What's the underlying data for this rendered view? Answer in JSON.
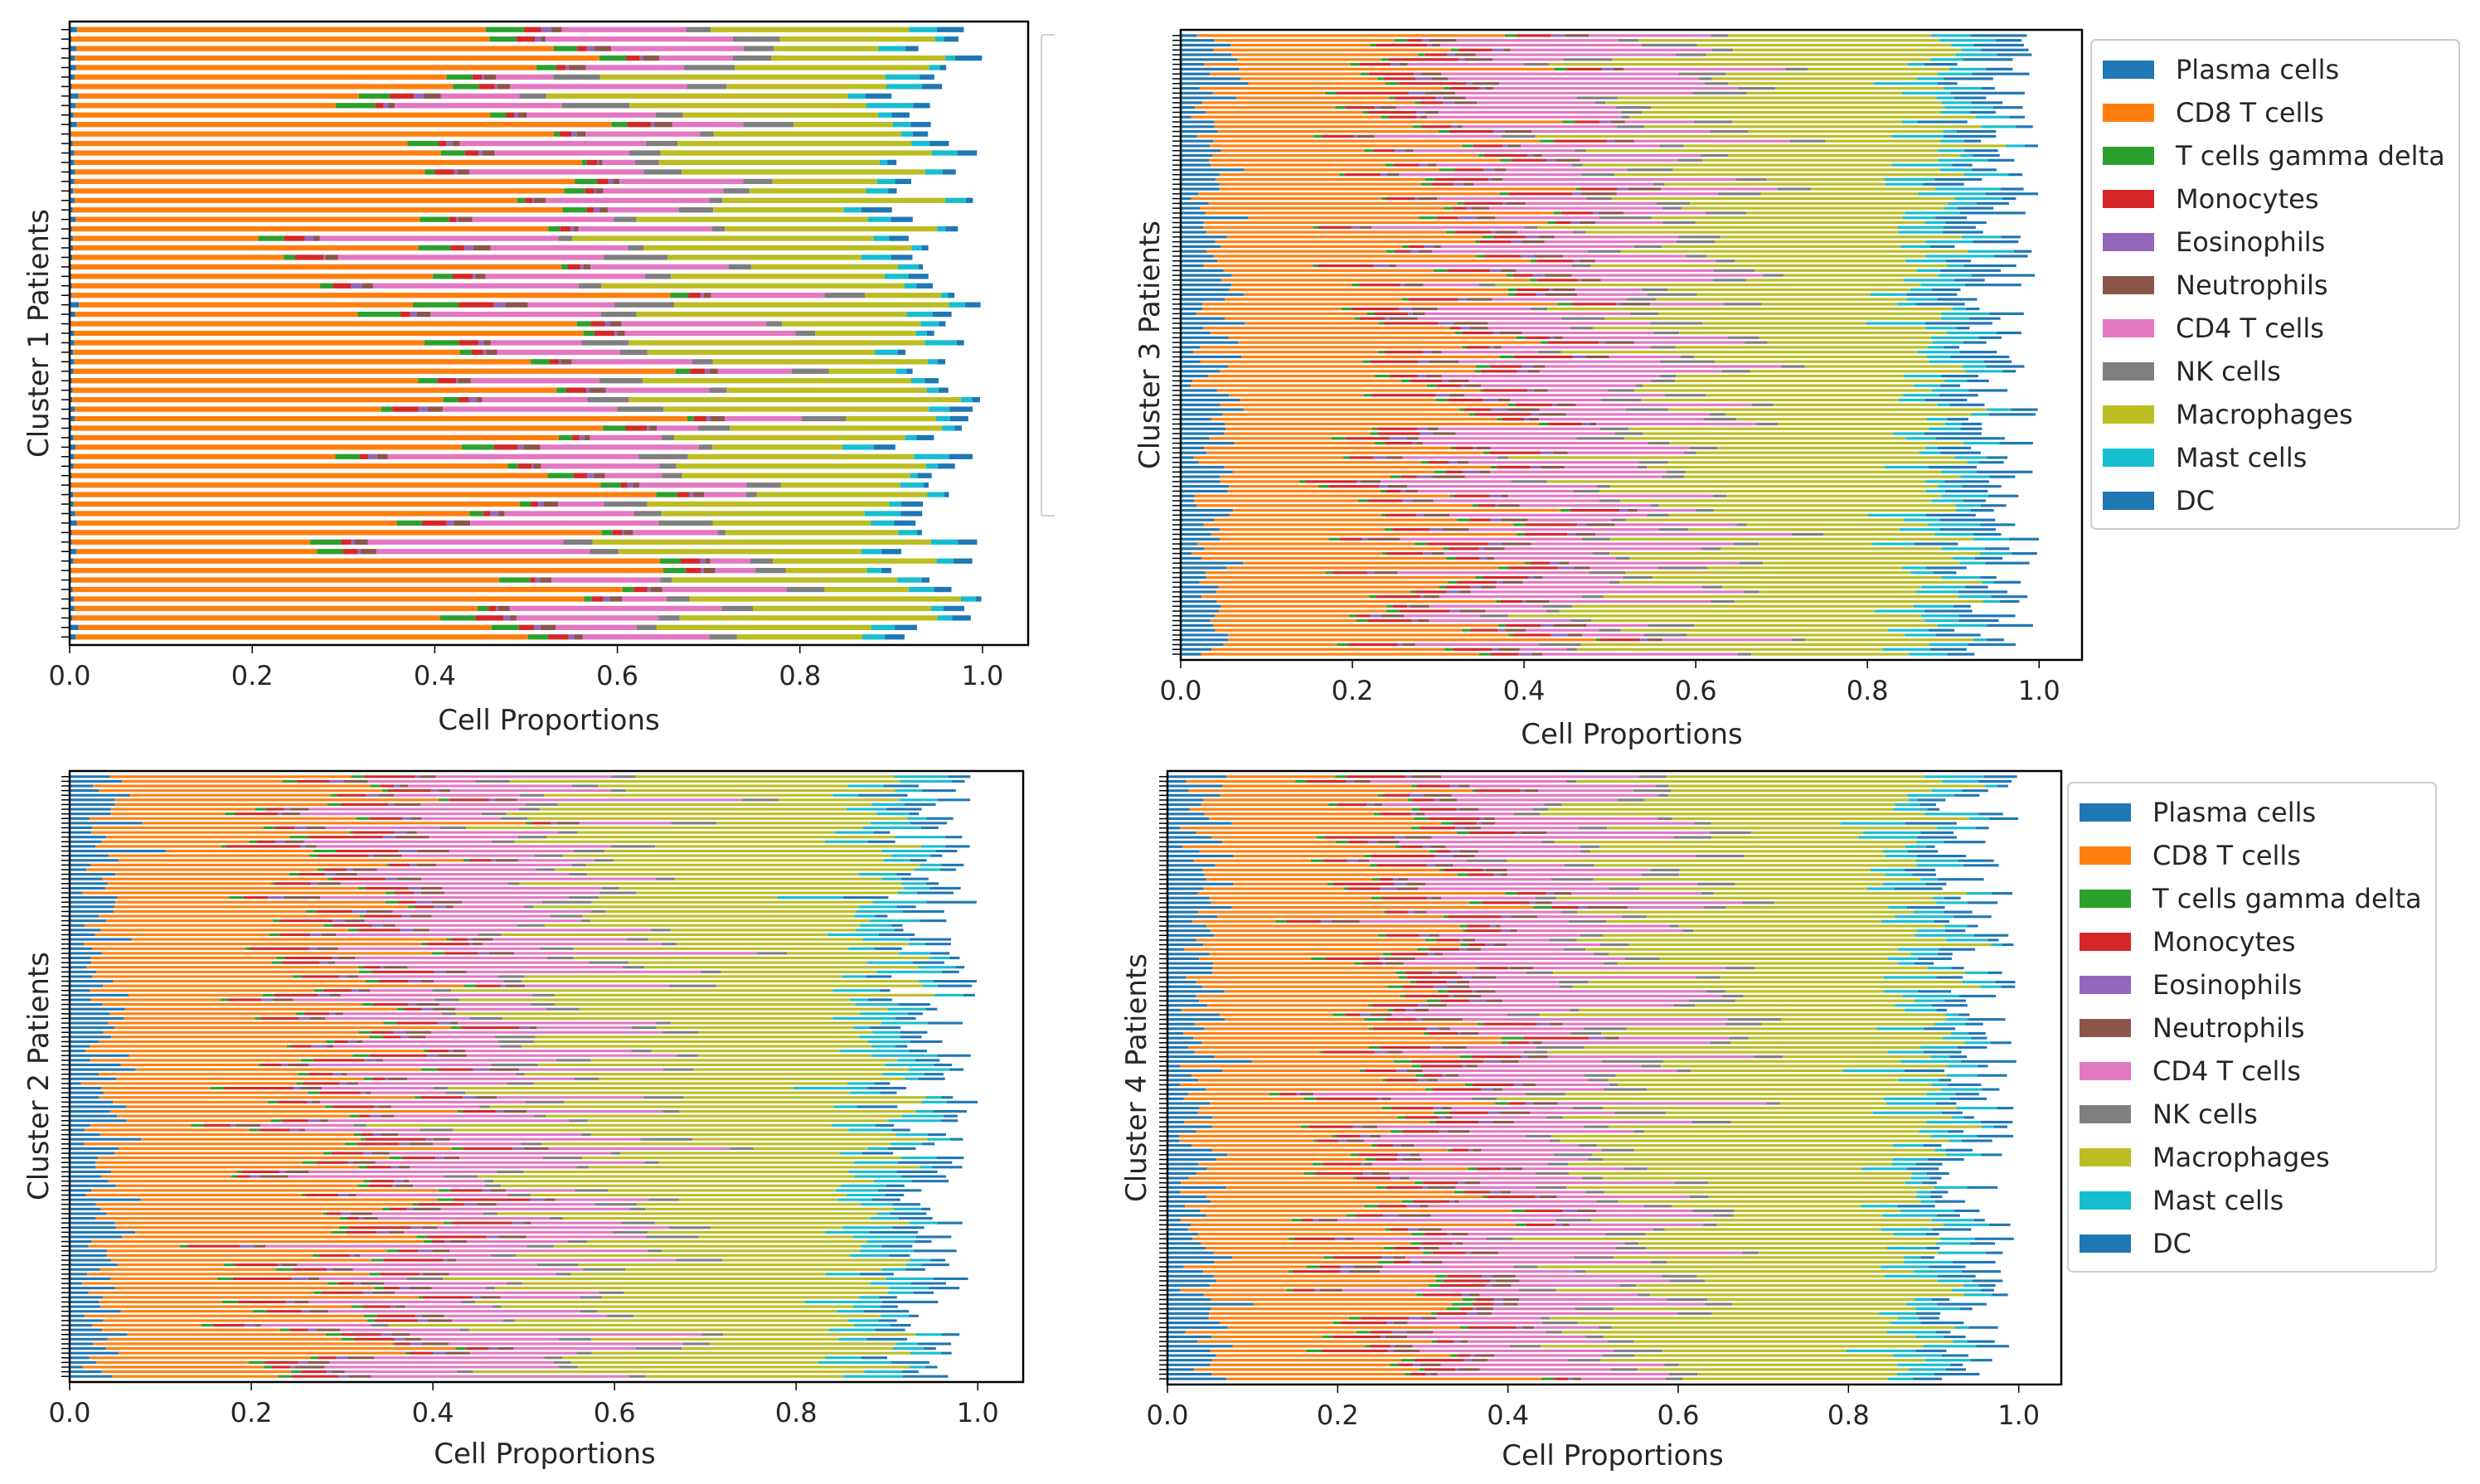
{
  "colors": {
    "Plasma cells": "#1f77b4",
    "CD8 T cells": "#ff7f0e",
    "T cells gamma delta": "#2ca02c",
    "Monocytes": "#d62728",
    "Eosinophils": "#9467bd",
    "Neutrophils": "#8c564b",
    "CD4 T cells": "#e377c2",
    "NK cells": "#7f7f7f",
    "Macrophages": "#bcbd22",
    "Mast cells": "#17becf",
    "DC": "#1f77b4"
  },
  "chart_data": [
    {
      "type": "bar",
      "orientation": "horizontal",
      "stacked": true,
      "title": "",
      "xlabel": "Cell Proportions",
      "ylabel": "Cluster 1 Patients",
      "xlim": [
        0,
        1.05
      ],
      "xticks": [
        "0.0",
        "0.2",
        "0.4",
        "0.6",
        "0.8",
        "1.0"
      ],
      "n_patients": 65,
      "legend_placement": "right (clipped)",
      "legend": [],
      "component_means": [
        0.004,
        0.46,
        0.02,
        0.015,
        0.005,
        0.01,
        0.13,
        0.03,
        0.2,
        0.02,
        0.015
      ]
    },
    {
      "type": "bar",
      "orientation": "horizontal",
      "stacked": true,
      "title": "",
      "xlabel": "Cell Proportions",
      "ylabel": "Cluster 3 Patients",
      "xlim": [
        0,
        1.05
      ],
      "xticks": [
        "0.0",
        "0.2",
        "0.4",
        "0.6",
        "0.8",
        "1.0"
      ],
      "n_patients": 130,
      "legend_placement": "right",
      "legend": [
        "Plasma cells",
        "CD8 T cells",
        "T cells gamma delta",
        "Monocytes",
        "Eosinophils",
        "Neutrophils",
        "CD4 T cells",
        "NK cells",
        "Macrophages",
        "Mast cells",
        "DC"
      ],
      "component_means": [
        0.04,
        0.25,
        0.01,
        0.04,
        0.01,
        0.02,
        0.17,
        0.03,
        0.33,
        0.04,
        0.04
      ]
    },
    {
      "type": "bar",
      "orientation": "horizontal",
      "stacked": true,
      "title": "",
      "xlabel": "Cell Proportions",
      "ylabel": "Cluster 2 Patients",
      "xlim": [
        0,
        1.05
      ],
      "xticks": [
        "0.0",
        "0.2",
        "0.4",
        "0.6",
        "0.8",
        "1.0"
      ],
      "n_patients": 130,
      "legend_placement": "none",
      "legend": [],
      "component_means": [
        0.04,
        0.25,
        0.01,
        0.04,
        0.01,
        0.02,
        0.17,
        0.03,
        0.34,
        0.04,
        0.03
      ]
    },
    {
      "type": "bar",
      "orientation": "horizontal",
      "stacked": true,
      "title": "",
      "xlabel": "Cell Proportions",
      "ylabel": "Cluster 4 Patients",
      "xlim": [
        0,
        1.05
      ],
      "xticks": [
        "0.0",
        "0.2",
        "0.4",
        "0.6",
        "0.8",
        "1.0"
      ],
      "n_patients": 130,
      "legend_placement": "right",
      "legend": [
        "Plasma cells",
        "CD8 T cells",
        "T cells gamma delta",
        "Monocytes",
        "Eosinophils",
        "Neutrophils",
        "CD4 T cells",
        "NK cells",
        "Macrophages",
        "Mast cells",
        "DC"
      ],
      "component_means": [
        0.04,
        0.25,
        0.01,
        0.04,
        0.01,
        0.02,
        0.17,
        0.03,
        0.34,
        0.04,
        0.03
      ]
    }
  ]
}
